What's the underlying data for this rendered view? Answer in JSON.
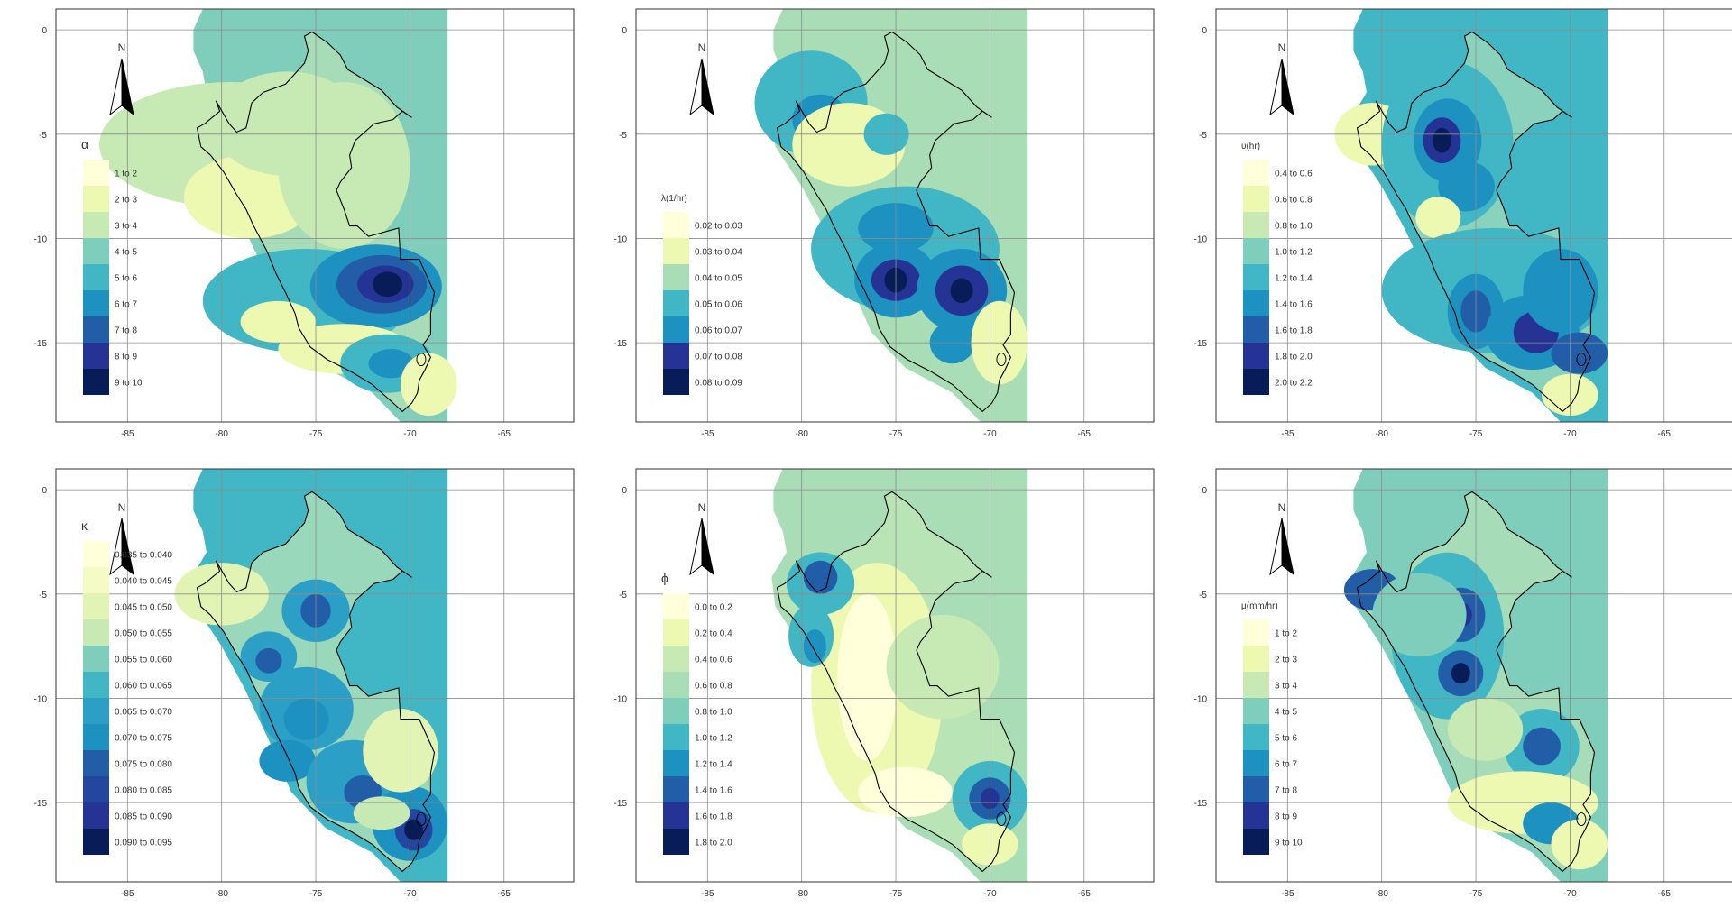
{
  "figure": {
    "x_ticks": [
      "-85",
      "-80",
      "-75",
      "-70",
      "-65"
    ],
    "y_ticks": [
      "0",
      "-5",
      "-10",
      "-15"
    ],
    "north_label": "N",
    "colors": {
      "frame": "#333333",
      "grid": "#8c8c8c",
      "coast": "#000000",
      "ocean_bg": "#ffffff",
      "palette": [
        "#ffffd9",
        "#edf8b1",
        "#c7e9b4",
        "#7fcdbb",
        "#41b6c4",
        "#1d91c0",
        "#225ea8",
        "#253494",
        "#081d58"
      ]
    },
    "panels": [
      {
        "id": "alpha",
        "symbol": "α",
        "legend": [
          {
            "label": "1 to 2",
            "color": "#ffffd9"
          },
          {
            "label": "2 to 3",
            "color": "#edf8b1"
          },
          {
            "label": "3 to 4",
            "color": "#c7e9b4"
          },
          {
            "label": "4 to 5",
            "color": "#7fcdbb"
          },
          {
            "label": "5 to 6",
            "color": "#41b6c4"
          },
          {
            "label": "6 to 7",
            "color": "#1d91c0"
          },
          {
            "label": "7 to 8",
            "color": "#225ea8"
          },
          {
            "label": "8 to 9",
            "color": "#253494"
          },
          {
            "label": "9 to 10",
            "color": "#081d58"
          }
        ],
        "background_color": "#7fcdbb"
      },
      {
        "id": "lambda",
        "symbol": "λ(1/hr)",
        "legend": [
          {
            "label": "0.02 to 0.03",
            "color": "#ffffd9"
          },
          {
            "label": "0.03 to 0.04",
            "color": "#edf8b1"
          },
          {
            "label": "0.04 to 0.05",
            "color": "#a8ddb5"
          },
          {
            "label": "0.05 to 0.06",
            "color": "#41b6c4"
          },
          {
            "label": "0.06 to 0.07",
            "color": "#1d91c0"
          },
          {
            "label": "0.07 to 0.08",
            "color": "#253494"
          },
          {
            "label": "0.08 to 0.09",
            "color": "#081d58"
          }
        ],
        "background_color": "#a8ddb5"
      },
      {
        "id": "upsilon",
        "symbol": "υ(hr)",
        "legend": [
          {
            "label": "0.4 to 0.6",
            "color": "#ffffd9"
          },
          {
            "label": "0.6 to 0.8",
            "color": "#edf8b1"
          },
          {
            "label": "0.8 to 1.0",
            "color": "#c7e9b4"
          },
          {
            "label": "1.0 to 1.2",
            "color": "#7fcdbb"
          },
          {
            "label": "1.2 to 1.4",
            "color": "#41b6c4"
          },
          {
            "label": "1.4 to 1.6",
            "color": "#1d91c0"
          },
          {
            "label": "1.6 to 1.8",
            "color": "#225ea8"
          },
          {
            "label": "1.8 to 2.0",
            "color": "#253494"
          },
          {
            "label": "2.0 to 2.2",
            "color": "#081d58"
          }
        ],
        "background_color": "#41b6c4"
      },
      {
        "id": "kappa",
        "symbol": "κ",
        "legend": [
          {
            "label": "0.035 to 0.040",
            "color": "#ffffd9"
          },
          {
            "label": "0.040 to 0.045",
            "color": "#f4fbc4"
          },
          {
            "label": "0.045 to 0.050",
            "color": "#e2f4b4"
          },
          {
            "label": "0.050 to 0.055",
            "color": "#c7e9b4"
          },
          {
            "label": "0.055 to 0.060",
            "color": "#7fcdbb"
          },
          {
            "label": "0.060 to 0.065",
            "color": "#41b6c4"
          },
          {
            "label": "0.065 to 0.070",
            "color": "#2c9fc7"
          },
          {
            "label": "0.070 to 0.075",
            "color": "#1d91c0"
          },
          {
            "label": "0.075 to 0.080",
            "color": "#225ea8"
          },
          {
            "label": "0.080 to 0.085",
            "color": "#23479f"
          },
          {
            "label": "0.085 to 0.090",
            "color": "#253494"
          },
          {
            "label": "0.090 to 0.095",
            "color": "#081d58"
          }
        ],
        "background_color": "#41b6c4"
      },
      {
        "id": "phi",
        "symbol": "ϕ",
        "legend": [
          {
            "label": "0.0 to 0.2",
            "color": "#ffffd9"
          },
          {
            "label": "0.2 to 0.4",
            "color": "#edf8b1"
          },
          {
            "label": "0.4 to 0.6",
            "color": "#c7e9b4"
          },
          {
            "label": "0.6 to 0.8",
            "color": "#a8ddb5"
          },
          {
            "label": "0.8 to 1.0",
            "color": "#7fcdbb"
          },
          {
            "label": "1.0 to 1.2",
            "color": "#41b6c4"
          },
          {
            "label": "1.2 to 1.4",
            "color": "#1d91c0"
          },
          {
            "label": "1.4 to 1.6",
            "color": "#225ea8"
          },
          {
            "label": "1.6 to 1.8",
            "color": "#253494"
          },
          {
            "label": "1.8 to 2.0",
            "color": "#081d58"
          }
        ],
        "background_color": "#a8ddb5"
      },
      {
        "id": "mu",
        "symbol": "μ(mm/hr)",
        "legend": [
          {
            "label": "1 to 2",
            "color": "#ffffd9"
          },
          {
            "label": "2 to 3",
            "color": "#edf8b1"
          },
          {
            "label": "3 to 4",
            "color": "#c7e9b4"
          },
          {
            "label": "4 to 5",
            "color": "#7fcdbb"
          },
          {
            "label": "5 to 6",
            "color": "#41b6c4"
          },
          {
            "label": "6 to 7",
            "color": "#1d91c0"
          },
          {
            "label": "7 to 8",
            "color": "#225ea8"
          },
          {
            "label": "8 to 9",
            "color": "#253494"
          },
          {
            "label": "9 to 10",
            "color": "#081d58"
          }
        ],
        "background_color": "#7fcdbb"
      }
    ]
  }
}
